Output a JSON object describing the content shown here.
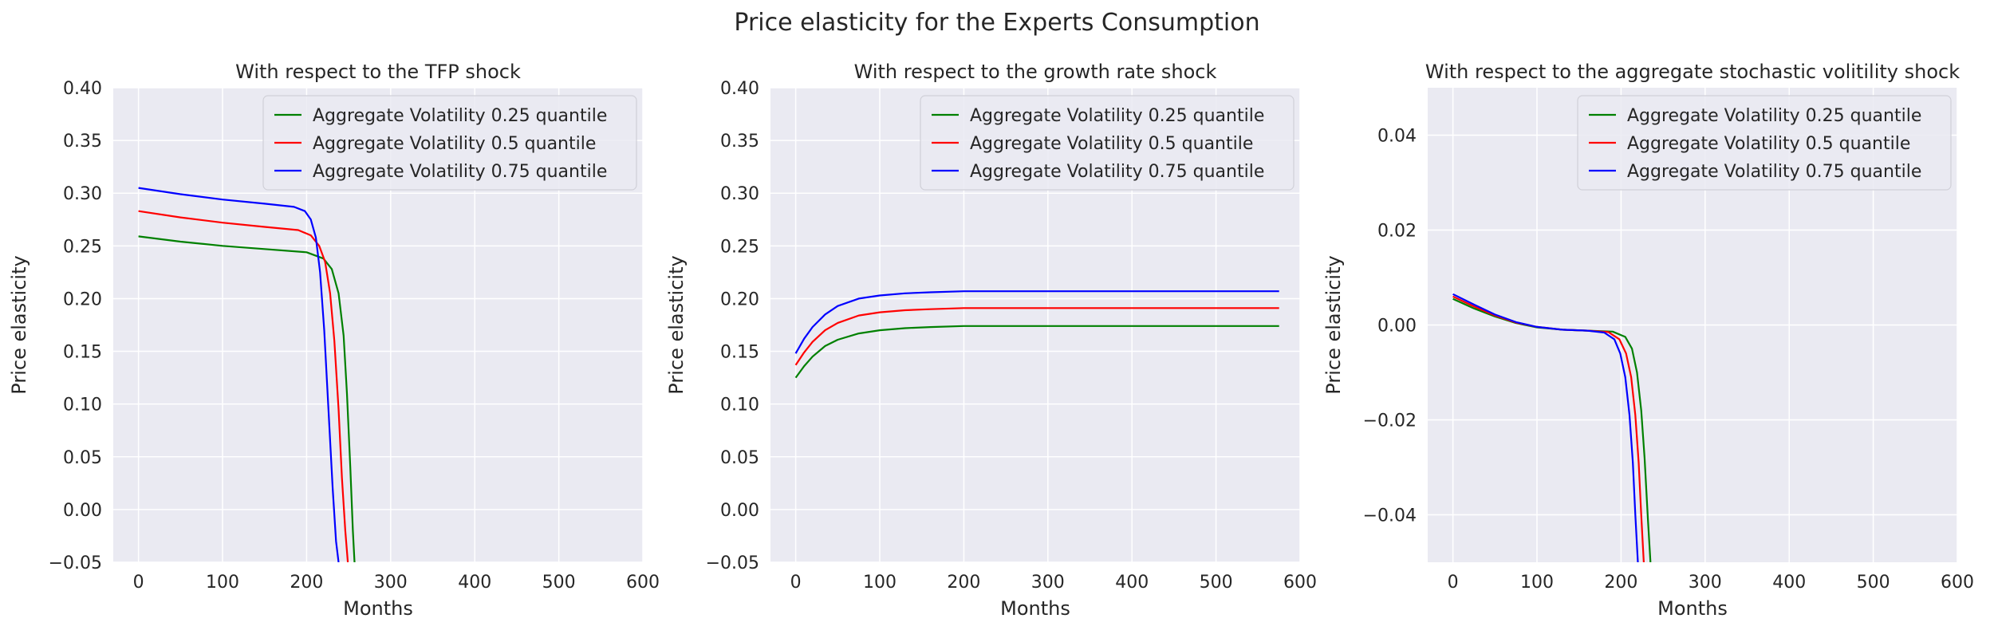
{
  "figure": {
    "title": "Price elasticity for the Experts Consumption"
  },
  "chart_data": [
    {
      "type": "line",
      "title": "With respect to the TFP shock",
      "xlabel": "Months",
      "ylabel": "Price elasticity",
      "xlim": [
        -30,
        600
      ],
      "ylim": [
        -0.05,
        0.4
      ],
      "xticks": [
        0,
        100,
        200,
        300,
        400,
        500,
        600
      ],
      "xtick_labels": [
        "0",
        "100",
        "200",
        "300",
        "400",
        "500",
        "600"
      ],
      "yticks": [
        -0.05,
        0.0,
        0.05,
        0.1,
        0.15,
        0.2,
        0.25,
        0.3,
        0.35,
        0.4
      ],
      "ytick_labels": [
        "−0.05",
        "0.00",
        "0.05",
        "0.10",
        "0.15",
        "0.20",
        "0.25",
        "0.30",
        "0.35",
        "0.40"
      ],
      "grid": true,
      "legend_position": "top-right",
      "series": [
        {
          "name": "Aggregate Volatility 0.25 quantile",
          "color": "#008000",
          "x": [
            0,
            50,
            100,
            150,
            200,
            220,
            230,
            238,
            244,
            248,
            252,
            255,
            257
          ],
          "y": [
            0.259,
            0.254,
            0.25,
            0.247,
            0.244,
            0.238,
            0.228,
            0.205,
            0.165,
            0.11,
            0.04,
            -0.02,
            -0.05
          ]
        },
        {
          "name": "Aggregate Volatility 0.5 quantile",
          "color": "#ff0000",
          "x": [
            0,
            50,
            100,
            150,
            190,
            205,
            215,
            222,
            228,
            233,
            238,
            242,
            246,
            249
          ],
          "y": [
            0.283,
            0.277,
            0.272,
            0.268,
            0.265,
            0.26,
            0.25,
            0.235,
            0.205,
            0.16,
            0.095,
            0.03,
            -0.02,
            -0.05
          ]
        },
        {
          "name": "Aggregate Volatility 0.75 quantile",
          "color": "#0000ff",
          "x": [
            0,
            50,
            100,
            150,
            185,
            198,
            205,
            211,
            216,
            221,
            226,
            231,
            235,
            238
          ],
          "y": [
            0.305,
            0.299,
            0.294,
            0.29,
            0.287,
            0.283,
            0.275,
            0.258,
            0.225,
            0.17,
            0.095,
            0.02,
            -0.03,
            -0.05
          ]
        }
      ]
    },
    {
      "type": "line",
      "title": "With respect to the growth rate shock",
      "xlabel": "Months",
      "ylabel": "Price elasticity",
      "xlim": [
        -30,
        600
      ],
      "ylim": [
        -0.05,
        0.4
      ],
      "xticks": [
        0,
        100,
        200,
        300,
        400,
        500,
        600
      ],
      "xtick_labels": [
        "0",
        "100",
        "200",
        "300",
        "400",
        "500",
        "600"
      ],
      "yticks": [
        -0.05,
        0.0,
        0.05,
        0.1,
        0.15,
        0.2,
        0.25,
        0.3,
        0.35,
        0.4
      ],
      "ytick_labels": [
        "−0.05",
        "0.00",
        "0.05",
        "0.10",
        "0.15",
        "0.20",
        "0.25",
        "0.30",
        "0.35",
        "0.40"
      ],
      "grid": true,
      "legend_position": "top-right",
      "series": [
        {
          "name": "Aggregate Volatility 0.25 quantile",
          "color": "#008000",
          "x": [
            0,
            10,
            20,
            35,
            50,
            75,
            100,
            130,
            160,
            200,
            250,
            300,
            400,
            500,
            575
          ],
          "y": [
            0.125,
            0.136,
            0.145,
            0.155,
            0.161,
            0.167,
            0.17,
            0.172,
            0.173,
            0.174,
            0.174,
            0.174,
            0.174,
            0.174,
            0.174
          ]
        },
        {
          "name": "Aggregate Volatility 0.5 quantile",
          "color": "#ff0000",
          "x": [
            0,
            10,
            20,
            35,
            50,
            75,
            100,
            130,
            160,
            200,
            250,
            300,
            400,
            500,
            575
          ],
          "y": [
            0.137,
            0.149,
            0.159,
            0.17,
            0.177,
            0.184,
            0.187,
            0.189,
            0.19,
            0.191,
            0.191,
            0.191,
            0.191,
            0.191,
            0.191
          ]
        },
        {
          "name": "Aggregate Volatility 0.75 quantile",
          "color": "#0000ff",
          "x": [
            0,
            10,
            20,
            35,
            50,
            75,
            100,
            130,
            160,
            200,
            250,
            300,
            400,
            500,
            575
          ],
          "y": [
            0.148,
            0.162,
            0.173,
            0.185,
            0.193,
            0.2,
            0.203,
            0.205,
            0.206,
            0.207,
            0.207,
            0.207,
            0.207,
            0.207,
            0.207
          ]
        }
      ]
    },
    {
      "type": "line",
      "title": "With respect to the aggregate stochastic volitility shock",
      "xlabel": "Months",
      "ylabel": "Price elasticity",
      "xlim": [
        -30,
        600
      ],
      "ylim": [
        -0.05,
        0.05
      ],
      "xticks": [
        0,
        100,
        200,
        300,
        400,
        500,
        600
      ],
      "xtick_labels": [
        "0",
        "100",
        "200",
        "300",
        "400",
        "500",
        "600"
      ],
      "yticks": [
        -0.04,
        -0.02,
        0.0,
        0.02,
        0.04
      ],
      "ytick_labels": [
        "−0.04",
        "−0.02",
        "0.00",
        "0.02",
        "0.04"
      ],
      "grid": true,
      "legend_position": "top-right",
      "series": [
        {
          "name": "Aggregate Volatility 0.25 quantile",
          "color": "#008000",
          "x": [
            0,
            25,
            50,
            75,
            100,
            130,
            160,
            190,
            205,
            213,
            219,
            224,
            228,
            232,
            235
          ],
          "y": [
            0.0055,
            0.0035,
            0.0018,
            0.0004,
            -0.0005,
            -0.001,
            -0.0012,
            -0.0014,
            -0.0025,
            -0.005,
            -0.01,
            -0.018,
            -0.028,
            -0.041,
            -0.05
          ]
        },
        {
          "name": "Aggregate Volatility 0.5 quantile",
          "color": "#ff0000",
          "x": [
            0,
            25,
            50,
            75,
            100,
            130,
            160,
            185,
            198,
            206,
            212,
            217,
            221,
            224,
            227
          ],
          "y": [
            0.006,
            0.0039,
            0.002,
            0.0005,
            -0.0004,
            -0.001,
            -0.0012,
            -0.0015,
            -0.003,
            -0.006,
            -0.011,
            -0.019,
            -0.029,
            -0.04,
            -0.05
          ]
        },
        {
          "name": "Aggregate Volatility 0.75 quantile",
          "color": "#0000ff",
          "x": [
            0,
            25,
            50,
            75,
            100,
            130,
            160,
            180,
            192,
            199,
            205,
            210,
            214,
            217,
            220
          ],
          "y": [
            0.0065,
            0.0043,
            0.0022,
            0.0006,
            -0.0004,
            -0.001,
            -0.0012,
            -0.0016,
            -0.003,
            -0.006,
            -0.011,
            -0.019,
            -0.029,
            -0.04,
            -0.05
          ]
        }
      ]
    }
  ]
}
